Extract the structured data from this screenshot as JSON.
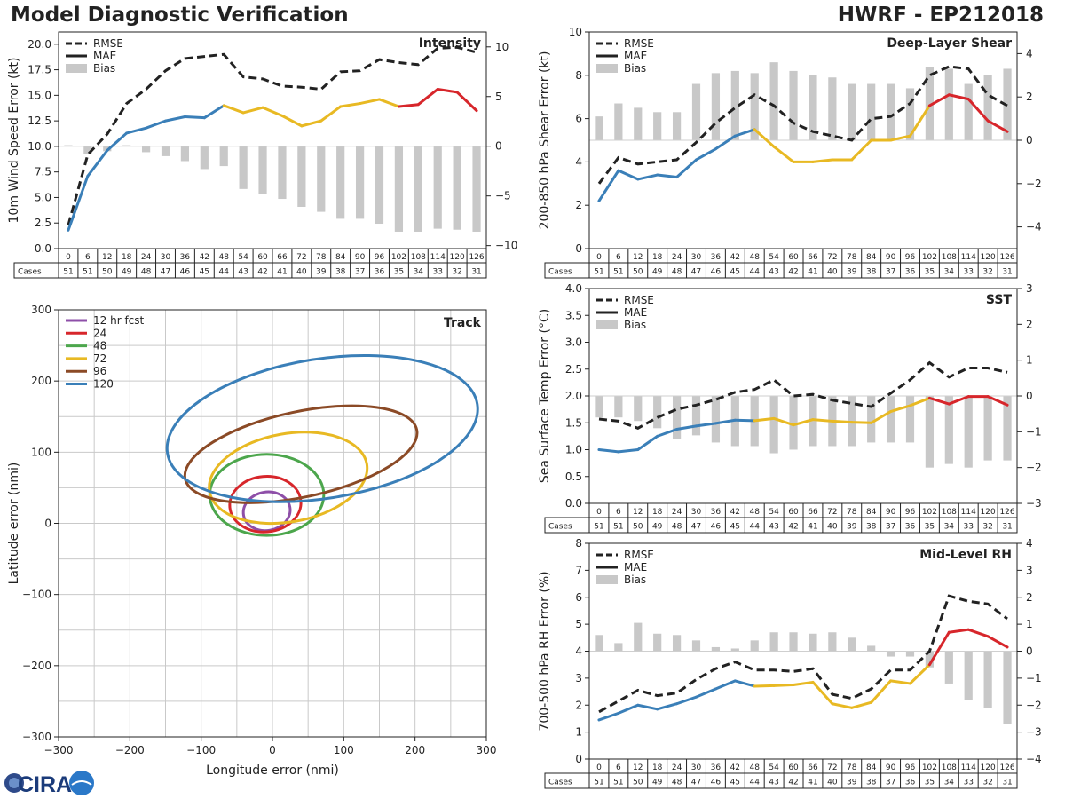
{
  "header": {
    "title": "Model Diagnostic Verification",
    "storm": "HWRF - EP212018"
  },
  "hours": [
    0,
    6,
    12,
    18,
    24,
    30,
    36,
    42,
    48,
    54,
    60,
    66,
    72,
    78,
    84,
    90,
    96,
    102,
    108,
    114,
    120,
    126
  ],
  "cases": [
    51,
    51,
    50,
    49,
    48,
    47,
    46,
    45,
    44,
    43,
    42,
    41,
    40,
    39,
    38,
    37,
    36,
    35,
    34,
    33,
    32,
    31
  ],
  "cases_label": "Cases",
  "legend": {
    "rmse": "RMSE",
    "mae": "MAE",
    "bias": "Bias"
  },
  "logo": {
    "text": "CIRA"
  },
  "colors": {
    "early": "#3a7fb8",
    "mid": "#e8b923",
    "late": "#d7262b",
    "rmse": "#222222",
    "bias": "#c8c8c8"
  },
  "chart_data": [
    {
      "id": "intensity",
      "type": "line",
      "title": "Intensity",
      "ylabel": "10m Wind Speed Error (kt)",
      "ylim": [
        0,
        21.2
      ],
      "yticks": [
        0.0,
        2.5,
        5.0,
        7.5,
        10.0,
        12.5,
        15.0,
        17.5,
        20.0
      ],
      "ytick_decimals": 1,
      "y2lim": [
        -10.3,
        11.5
      ],
      "y2ticks": [
        -10,
        -5,
        0,
        5,
        10
      ],
      "rmse": [
        2.3,
        9.2,
        11.2,
        14.2,
        15.6,
        17.4,
        18.6,
        18.8,
        19.0,
        16.8,
        16.6,
        15.9,
        15.8,
        15.6,
        17.3,
        17.4,
        18.5,
        18.2,
        18.0,
        19.6,
        19.7,
        19.2
      ],
      "mae": [
        1.8,
        7.1,
        9.6,
        11.3,
        11.8,
        12.5,
        12.9,
        12.8,
        14.0,
        13.3,
        13.8,
        13.0,
        12.0,
        12.5,
        13.9,
        14.2,
        14.6,
        13.9,
        14.1,
        15.6,
        15.3,
        13.5
      ],
      "bias": [
        0.1,
        -0.8,
        -0.5,
        0.1,
        -0.6,
        -1.0,
        -1.5,
        -2.3,
        -2.0,
        -4.3,
        -4.8,
        -5.3,
        -6.1,
        -6.6,
        -7.3,
        -7.3,
        -7.8,
        -8.6,
        -8.6,
        -8.3,
        -8.4,
        -8.6
      ]
    },
    {
      "id": "shear",
      "type": "line",
      "title": "Deep-Layer Shear",
      "ylabel": "200-850 hPa Shear Error (kt)",
      "ylim": [
        0,
        10
      ],
      "yticks": [
        0,
        2,
        4,
        6,
        8,
        10
      ],
      "ytick_decimals": 0,
      "y2lim": [
        -5,
        5
      ],
      "y2ticks": [
        -4,
        -2,
        0,
        2,
        4
      ],
      "rmse": [
        3.0,
        4.2,
        3.9,
        4.0,
        4.1,
        4.9,
        5.8,
        6.5,
        7.1,
        6.6,
        5.8,
        5.4,
        5.2,
        5.0,
        6.0,
        6.1,
        6.7,
        8.0,
        8.4,
        8.3,
        7.1,
        6.6
      ],
      "mae": [
        2.2,
        3.6,
        3.2,
        3.4,
        3.3,
        4.1,
        4.6,
        5.2,
        5.5,
        4.7,
        4.0,
        4.0,
        4.1,
        4.1,
        5.0,
        5.0,
        5.2,
        6.6,
        7.1,
        6.9,
        5.9,
        5.4
      ],
      "bias": [
        1.1,
        1.7,
        1.5,
        1.3,
        1.3,
        2.6,
        3.1,
        3.2,
        3.1,
        3.6,
        3.2,
        3.0,
        2.9,
        2.6,
        2.6,
        2.6,
        2.4,
        3.4,
        3.3,
        2.6,
        3.0,
        3.3
      ]
    },
    {
      "id": "sst",
      "type": "line",
      "title": "SST",
      "ylabel": "Sea Surface Temp Error (°C)",
      "ylim": [
        0,
        4
      ],
      "yticks": [
        0.0,
        0.5,
        1.0,
        1.5,
        2.0,
        2.5,
        3.0,
        3.5,
        4.0
      ],
      "ytick_decimals": 1,
      "y2lim": [
        -3,
        3
      ],
      "y2ticks": [
        -3,
        -2,
        -1,
        0,
        1,
        2,
        3
      ],
      "rmse": [
        1.57,
        1.53,
        1.4,
        1.6,
        1.75,
        1.83,
        1.93,
        2.07,
        2.12,
        2.3,
        2.0,
        2.03,
        1.92,
        1.86,
        1.8,
        2.05,
        2.3,
        2.62,
        2.35,
        2.52,
        2.52,
        2.44
      ],
      "mae": [
        1.0,
        0.96,
        1.0,
        1.25,
        1.38,
        1.44,
        1.49,
        1.55,
        1.54,
        1.58,
        1.46,
        1.56,
        1.53,
        1.51,
        1.5,
        1.71,
        1.82,
        1.96,
        1.85,
        1.99,
        1.99,
        1.83
      ],
      "bias": [
        -0.6,
        -0.6,
        -0.7,
        -0.9,
        -1.2,
        -1.1,
        -1.3,
        -1.4,
        -1.4,
        -1.6,
        -1.5,
        -1.4,
        -1.4,
        -1.4,
        -1.3,
        -1.3,
        -1.3,
        -2.0,
        -1.9,
        -2.0,
        -1.8,
        -1.8
      ]
    },
    {
      "id": "rh",
      "type": "line",
      "title": "Mid-Level RH",
      "ylabel": "700-500 hPa RH Error (%)",
      "ylim": [
        0,
        8
      ],
      "yticks": [
        0,
        1,
        2,
        3,
        4,
        5,
        6,
        7,
        8
      ],
      "ytick_decimals": 0,
      "y2lim": [
        -4,
        4
      ],
      "y2ticks": [
        -4,
        -3,
        -2,
        -1,
        0,
        1,
        2,
        3,
        4
      ],
      "rmse": [
        1.75,
        2.15,
        2.55,
        2.35,
        2.45,
        2.95,
        3.35,
        3.6,
        3.3,
        3.3,
        3.25,
        3.35,
        2.4,
        2.25,
        2.6,
        3.3,
        3.3,
        4.0,
        6.05,
        5.85,
        5.75,
        5.2
      ],
      "mae": [
        1.45,
        1.7,
        2.0,
        1.85,
        2.05,
        2.3,
        2.6,
        2.9,
        2.7,
        2.72,
        2.75,
        2.85,
        2.05,
        1.9,
        2.1,
        2.9,
        2.8,
        3.5,
        4.7,
        4.8,
        4.55,
        4.15
      ],
      "bias": [
        0.6,
        0.3,
        1.05,
        0.65,
        0.6,
        0.4,
        0.15,
        0.1,
        0.4,
        0.7,
        0.7,
        0.65,
        0.7,
        0.5,
        0.2,
        -0.2,
        -0.2,
        -0.6,
        -1.2,
        -1.8,
        -2.1,
        -2.7
      ]
    },
    {
      "id": "track",
      "type": "scatter",
      "title": "Track",
      "xlabel": "Longitude error (nmi)",
      "ylabel": "Latitude error (nmi)",
      "xlim": [
        -300,
        300
      ],
      "ylim": [
        -300,
        300
      ],
      "ticks": [
        -300,
        -200,
        -100,
        0,
        100,
        200,
        300
      ],
      "ellipses": [
        {
          "label": "12 hr fcst",
          "color": "#8e4fa8",
          "cx": -8,
          "cy": 17,
          "rx": 33,
          "ry": 27,
          "angle": 10
        },
        {
          "label": "24",
          "color": "#d7262b",
          "cx": -10,
          "cy": 27,
          "rx": 50,
          "ry": 39,
          "angle": 5
        },
        {
          "label": "48",
          "color": "#4ca64c",
          "cx": -8,
          "cy": 40,
          "rx": 80,
          "ry": 57,
          "angle": 0
        },
        {
          "label": "72",
          "color": "#e8b923",
          "cx": 22,
          "cy": 64,
          "rx": 112,
          "ry": 62,
          "angle": 10
        },
        {
          "label": "96",
          "color": "#8b4a26",
          "cx": 40,
          "cy": 97,
          "rx": 166,
          "ry": 60,
          "angle": 12
        },
        {
          "label": "120",
          "color": "#3a7fb8",
          "cx": 70,
          "cy": 133,
          "rx": 220,
          "ry": 98,
          "angle": 9
        }
      ]
    }
  ]
}
